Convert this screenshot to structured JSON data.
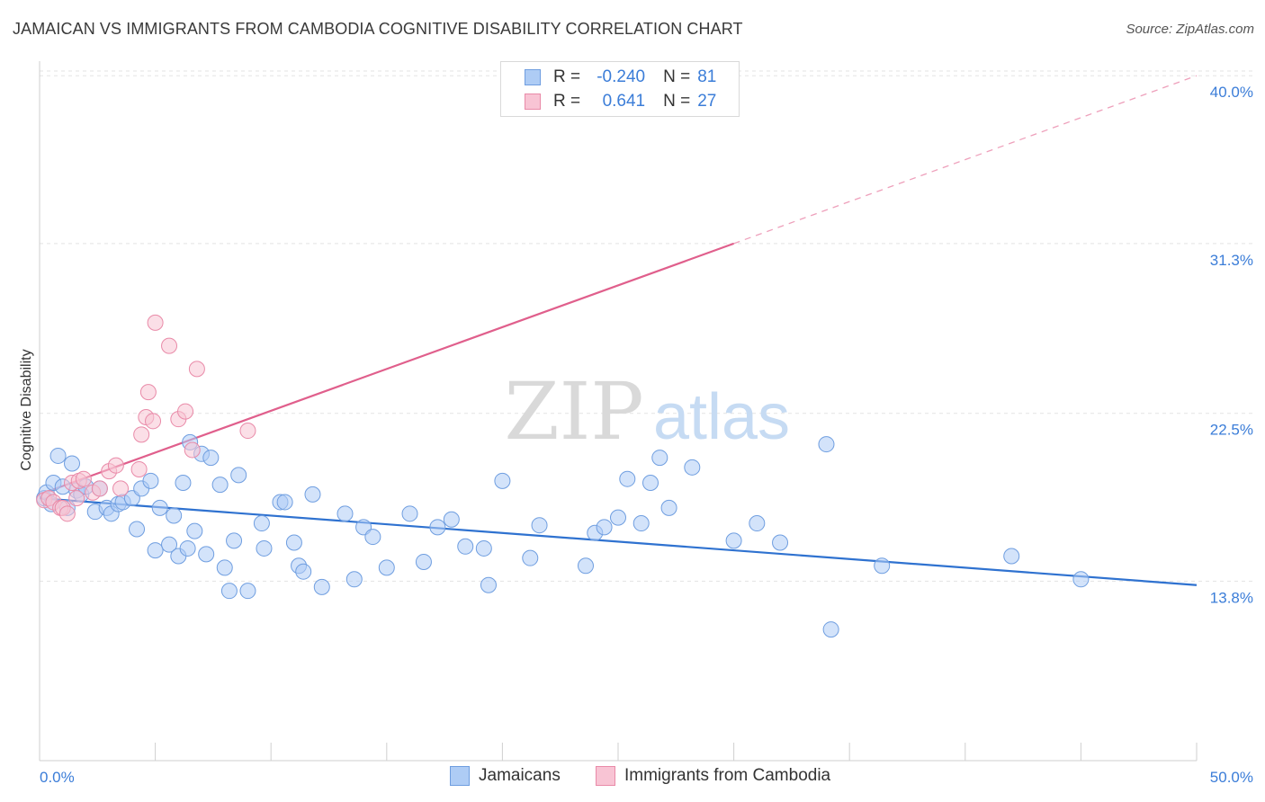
{
  "title": "JAMAICAN VS IMMIGRANTS FROM CAMBODIA COGNITIVE DISABILITY CORRELATION CHART",
  "source": "Source: ZipAtlas.com",
  "watermark": {
    "zip": "ZIP",
    "atlas": "atlas"
  },
  "legend": {
    "r_label": "R =",
    "n_label": "N =",
    "rows": [
      {
        "r": "-0.240",
        "n": "81",
        "fill": "#aeccf5",
        "stroke": "#6f9ee0"
      },
      {
        "r": "0.641",
        "n": "27",
        "fill": "#f8c4d4",
        "stroke": "#e98aa8"
      }
    ]
  },
  "bottom_legend": [
    {
      "label": "Jamaicans",
      "fill": "#aeccf5",
      "stroke": "#6f9ee0"
    },
    {
      "label": "Immigrants from Cambodia",
      "fill": "#f8c4d4",
      "stroke": "#e98aa8"
    }
  ],
  "colors": {
    "blue": "#2f72d0",
    "pink": "#e05f8c",
    "grid": "#e3e3e3",
    "axis_text": "#3b7dd8"
  },
  "chart_data": {
    "type": "scatter",
    "title": "JAMAICAN VS IMMIGRANTS FROM CAMBODIA COGNITIVE DISABILITY CORRELATION CHART",
    "xlabel": "",
    "ylabel": "Cognitive Disability",
    "xlim": [
      0,
      50
    ],
    "ylim": [
      4.5,
      41.5
    ],
    "x_tick_labels": [
      "0.0%",
      "50.0%"
    ],
    "y_ticks": [
      13.8,
      22.5,
      31.3,
      40.0
    ],
    "y_tick_labels": [
      "13.8%",
      "22.5%",
      "31.3%",
      "40.0%"
    ],
    "grid": "horizontal dashed",
    "legend_position": "top-center",
    "series": [
      {
        "name": "Jamaicans",
        "color": "#aeccf5",
        "r": -0.24,
        "n": 81,
        "trend": {
          "x": [
            0,
            50
          ],
          "y": [
            18.1,
            13.6
          ],
          "style": "solid"
        },
        "points": [
          [
            0.2,
            18.1
          ],
          [
            0.3,
            18.4
          ],
          [
            0.5,
            17.8
          ],
          [
            0.6,
            18.9
          ],
          [
            0.8,
            20.3
          ],
          [
            1.0,
            18.7
          ],
          [
            1.2,
            17.6
          ],
          [
            1.4,
            19.9
          ],
          [
            1.6,
            18.5
          ],
          [
            1.8,
            18.3
          ],
          [
            2.0,
            18.7
          ],
          [
            2.4,
            17.4
          ],
          [
            2.6,
            18.6
          ],
          [
            2.9,
            17.6
          ],
          [
            3.1,
            17.3
          ],
          [
            3.4,
            17.8
          ],
          [
            3.6,
            17.9
          ],
          [
            4.0,
            18.1
          ],
          [
            4.2,
            16.5
          ],
          [
            4.4,
            18.6
          ],
          [
            4.8,
            19.0
          ],
          [
            5.0,
            15.4
          ],
          [
            5.2,
            17.6
          ],
          [
            5.6,
            15.7
          ],
          [
            5.8,
            17.2
          ],
          [
            6.0,
            15.1
          ],
          [
            6.2,
            18.9
          ],
          [
            6.4,
            15.5
          ],
          [
            6.5,
            21.0
          ],
          [
            6.7,
            16.4
          ],
          [
            7.0,
            20.4
          ],
          [
            7.2,
            15.2
          ],
          [
            7.4,
            20.2
          ],
          [
            7.8,
            18.8
          ],
          [
            8.0,
            14.5
          ],
          [
            8.2,
            13.3
          ],
          [
            8.4,
            15.9
          ],
          [
            8.6,
            19.3
          ],
          [
            9.0,
            13.3
          ],
          [
            9.6,
            16.8
          ],
          [
            9.7,
            15.5
          ],
          [
            10.4,
            17.9
          ],
          [
            10.6,
            17.9
          ],
          [
            11.0,
            15.8
          ],
          [
            11.2,
            14.6
          ],
          [
            11.4,
            14.3
          ],
          [
            11.8,
            18.3
          ],
          [
            12.2,
            13.5
          ],
          [
            13.2,
            17.3
          ],
          [
            13.6,
            13.9
          ],
          [
            14.0,
            16.6
          ],
          [
            14.4,
            16.1
          ],
          [
            15.0,
            14.5
          ],
          [
            16.0,
            17.3
          ],
          [
            16.6,
            14.8
          ],
          [
            17.2,
            16.6
          ],
          [
            17.8,
            17.0
          ],
          [
            18.4,
            15.6
          ],
          [
            19.2,
            15.5
          ],
          [
            19.4,
            13.6
          ],
          [
            20.0,
            19.0
          ],
          [
            21.2,
            15.0
          ],
          [
            21.6,
            16.7
          ],
          [
            23.6,
            14.6
          ],
          [
            24.0,
            16.3
          ],
          [
            24.4,
            16.6
          ],
          [
            25.0,
            17.1
          ],
          [
            25.4,
            19.1
          ],
          [
            26.0,
            16.8
          ],
          [
            26.4,
            18.9
          ],
          [
            26.8,
            20.2
          ],
          [
            27.2,
            17.6
          ],
          [
            28.2,
            19.7
          ],
          [
            30.0,
            15.9
          ],
          [
            31.0,
            16.8
          ],
          [
            32.0,
            15.8
          ],
          [
            34.0,
            20.9
          ],
          [
            34.2,
            11.3
          ],
          [
            36.4,
            14.6
          ],
          [
            42.0,
            15.1
          ],
          [
            45.0,
            13.9
          ]
        ]
      },
      {
        "name": "Immigrants from Cambodia",
        "color": "#f8c4d4",
        "r": 0.641,
        "n": 27,
        "trend": {
          "x": [
            0,
            30
          ],
          "y": [
            18.3,
            31.3
          ],
          "style": "solid",
          "extended": {
            "x": [
              30,
              50
            ],
            "y": [
              31.3,
              40.0
            ],
            "style": "dashed"
          }
        },
        "points": [
          [
            0.2,
            18.0
          ],
          [
            0.4,
            18.1
          ],
          [
            0.6,
            17.9
          ],
          [
            0.9,
            17.6
          ],
          [
            1.0,
            17.6
          ],
          [
            1.2,
            17.3
          ],
          [
            1.4,
            18.9
          ],
          [
            1.6,
            18.1
          ],
          [
            1.7,
            19.0
          ],
          [
            1.9,
            19.1
          ],
          [
            2.3,
            18.4
          ],
          [
            2.6,
            18.6
          ],
          [
            3.0,
            19.5
          ],
          [
            3.3,
            19.8
          ],
          [
            3.5,
            18.6
          ],
          [
            4.3,
            19.6
          ],
          [
            4.4,
            21.4
          ],
          [
            4.6,
            22.3
          ],
          [
            4.7,
            23.6
          ],
          [
            4.9,
            22.1
          ],
          [
            5.0,
            27.2
          ],
          [
            5.6,
            26.0
          ],
          [
            6.0,
            22.2
          ],
          [
            6.3,
            22.6
          ],
          [
            6.6,
            20.6
          ],
          [
            6.8,
            24.8
          ],
          [
            9.0,
            21.6
          ]
        ]
      }
    ]
  }
}
